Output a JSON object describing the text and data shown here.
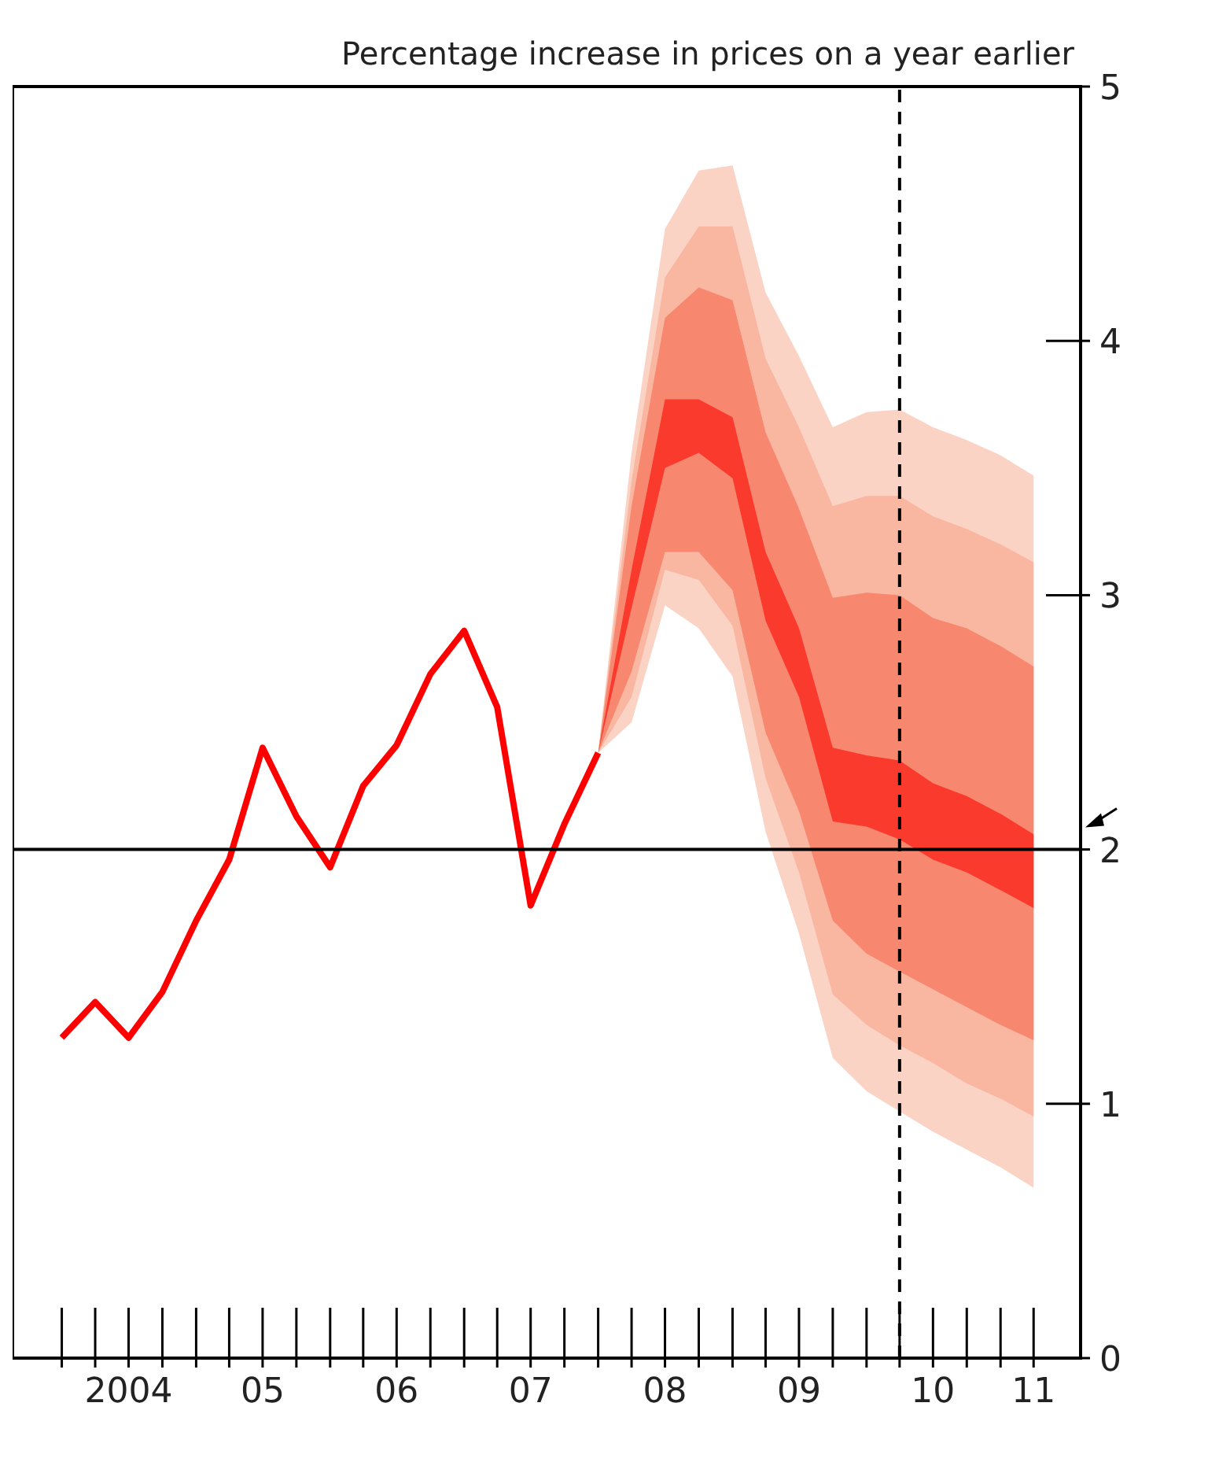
{
  "chart_data": {
    "type": "line",
    "ylabel": "Percentage increase in prices on a year earlier",
    "xlim": [
      "2003-08-20",
      "2011-08-07"
    ],
    "xticks": [
      {
        "value": "2004-01-01",
        "label": null
      },
      {
        "value": "2004-04-01",
        "label": null
      },
      {
        "value": "2004-07-01",
        "label": "2004"
      },
      {
        "value": "2004-10-01",
        "label": null
      },
      {
        "value": "2005-01-01",
        "label": null
      },
      {
        "value": "2005-04-01",
        "label": null
      },
      {
        "value": "2005-07-01",
        "label": "05"
      },
      {
        "value": "2005-10-01",
        "label": null
      },
      {
        "value": "2006-01-01",
        "label": null
      },
      {
        "value": "2006-04-01",
        "label": null
      },
      {
        "value": "2006-07-01",
        "label": "06"
      },
      {
        "value": "2006-10-01",
        "label": null
      },
      {
        "value": "2007-01-01",
        "label": null
      },
      {
        "value": "2007-04-01",
        "label": null
      },
      {
        "value": "2007-07-01",
        "label": "07"
      },
      {
        "value": "2007-10-01",
        "label": null
      },
      {
        "value": "2008-01-01",
        "label": null
      },
      {
        "value": "2008-04-01",
        "label": null
      },
      {
        "value": "2008-07-01",
        "label": "08"
      },
      {
        "value": "2008-10-01",
        "label": null
      },
      {
        "value": "2009-01-01",
        "label": null
      },
      {
        "value": "2009-04-01",
        "label": null
      },
      {
        "value": "2009-07-01",
        "label": "09"
      },
      {
        "value": "2009-10-01",
        "label": null
      },
      {
        "value": "2010-01-01",
        "label": null
      },
      {
        "value": "2010-04-01",
        "label": null
      },
      {
        "value": "2010-07-01",
        "label": "10"
      },
      {
        "value": "2010-10-01",
        "label": null
      },
      {
        "value": "2011-01-01",
        "label": null
      },
      {
        "value": "2011-04-01",
        "label": "11"
      }
    ],
    "ylim": [
      0,
      5
    ],
    "yticks": [
      0,
      1,
      2,
      3,
      4,
      5
    ],
    "grid": false,
    "legend": false,
    "marker": "none",
    "line_style": "solid",
    "ref_lines": [
      {
        "axis": "y",
        "value": 2,
        "label": null,
        "color": "#000000",
        "line_style": "solid"
      },
      {
        "axis": "x",
        "value": "2010-04-01",
        "label": null,
        "color": "#000000",
        "line_style": "dashed"
      }
    ],
    "series": [
      {
        "type": "line",
        "color": "#fbd3c5",
        "x": [
          "2008-01-01",
          "2008-04-01",
          "2008-07-01",
          "2008-10-01",
          "2009-01-01",
          "2009-04-01",
          "2009-07-01",
          "2009-10-01",
          "2010-01-01",
          "2010-04-01",
          "2010-07-01",
          "2010-10-01",
          "2011-01-01",
          "2011-04-01"
        ],
        "values": [
          null,
          null,
          null,
          null,
          null,
          null,
          null,
          null,
          null,
          null,
          null,
          null,
          null,
          null
        ],
        "upper": [
          2.38,
          3.56,
          4.44,
          4.67,
          4.69,
          4.19,
          3.94,
          3.66,
          3.72,
          3.73,
          3.66,
          3.61,
          3.55,
          3.47
        ],
        "lower": [
          2.38,
          2.5,
          2.96,
          2.87,
          2.68,
          2.07,
          1.67,
          1.18,
          1.05,
          0.97,
          0.89,
          0.82,
          0.75,
          0.67
        ]
      },
      {
        "type": "line",
        "color": "#f9b6a1",
        "x": [
          "2008-01-01",
          "2008-04-01",
          "2008-07-01",
          "2008-10-01",
          "2009-01-01",
          "2009-04-01",
          "2009-07-01",
          "2009-10-01",
          "2010-01-01",
          "2010-04-01",
          "2010-07-01",
          "2010-10-01",
          "2011-01-01",
          "2011-04-01"
        ],
        "values": [
          null,
          null,
          null,
          null,
          null,
          null,
          null,
          null,
          null,
          null,
          null,
          null,
          null,
          null
        ],
        "upper": [
          2.38,
          3.45,
          4.25,
          4.45,
          4.45,
          3.93,
          3.66,
          3.35,
          3.39,
          3.39,
          3.31,
          3.26,
          3.2,
          3.13
        ],
        "lower": [
          2.38,
          2.6,
          3.1,
          3.06,
          2.88,
          2.28,
          1.91,
          1.43,
          1.31,
          1.23,
          1.16,
          1.08,
          1.02,
          0.95
        ]
      },
      {
        "type": "line",
        "color": "#f7876f",
        "x": [
          "2008-01-01",
          "2008-04-01",
          "2008-07-01",
          "2008-10-01",
          "2009-01-01",
          "2009-04-01",
          "2009-07-01",
          "2009-10-01",
          "2010-01-01",
          "2010-04-01",
          "2010-07-01",
          "2010-10-01",
          "2011-01-01",
          "2011-04-01"
        ],
        "values": [
          null,
          null,
          null,
          null,
          null,
          null,
          null,
          null,
          null,
          null,
          null,
          null,
          null,
          null
        ],
        "upper": [
          2.38,
          3.35,
          4.09,
          4.21,
          4.16,
          3.64,
          3.34,
          2.99,
          3.01,
          3.0,
          2.91,
          2.87,
          2.8,
          2.72
        ],
        "lower": [
          2.38,
          2.7,
          3.17,
          3.17,
          3.02,
          2.46,
          2.15,
          1.72,
          1.59,
          1.52,
          1.45,
          1.38,
          1.31,
          1.25
        ]
      },
      {
        "type": "line",
        "color": "#fb3a2e",
        "x": [
          "2008-01-01",
          "2008-04-01",
          "2008-07-01",
          "2008-10-01",
          "2009-01-01",
          "2009-04-01",
          "2009-07-01",
          "2009-10-01",
          "2010-01-01",
          "2010-04-01",
          "2010-07-01",
          "2010-10-01",
          "2011-01-01",
          "2011-04-01"
        ],
        "values": [
          null,
          null,
          null,
          null,
          null,
          null,
          null,
          null,
          null,
          null,
          null,
          null,
          null,
          null
        ],
        "upper": [
          2.38,
          3.1,
          3.77,
          3.77,
          3.7,
          3.17,
          2.87,
          2.4,
          2.37,
          2.35,
          2.26,
          2.21,
          2.14,
          2.06
        ],
        "lower": [
          2.38,
          2.95,
          3.5,
          3.56,
          3.46,
          2.9,
          2.6,
          2.11,
          2.09,
          2.04,
          1.96,
          1.91,
          1.84,
          1.77
        ]
      },
      {
        "color": "#ff0000",
        "x": [
          "2004-01-01",
          "2004-04-01",
          "2004-07-01",
          "2004-10-01",
          "2005-01-01",
          "2005-04-01",
          "2005-07-01",
          "2005-10-01",
          "2006-01-01",
          "2006-04-01",
          "2006-07-01",
          "2006-10-01",
          "2007-01-01",
          "2007-04-01",
          "2007-07-01",
          "2007-10-01",
          "2008-01-01"
        ],
        "values": [
          1.26,
          1.4,
          1.26,
          1.44,
          1.72,
          1.96,
          2.4,
          2.13,
          1.93,
          2.25,
          2.41,
          2.69,
          2.86,
          2.56,
          1.78,
          2.1,
          2.38
        ]
      }
    ]
  }
}
